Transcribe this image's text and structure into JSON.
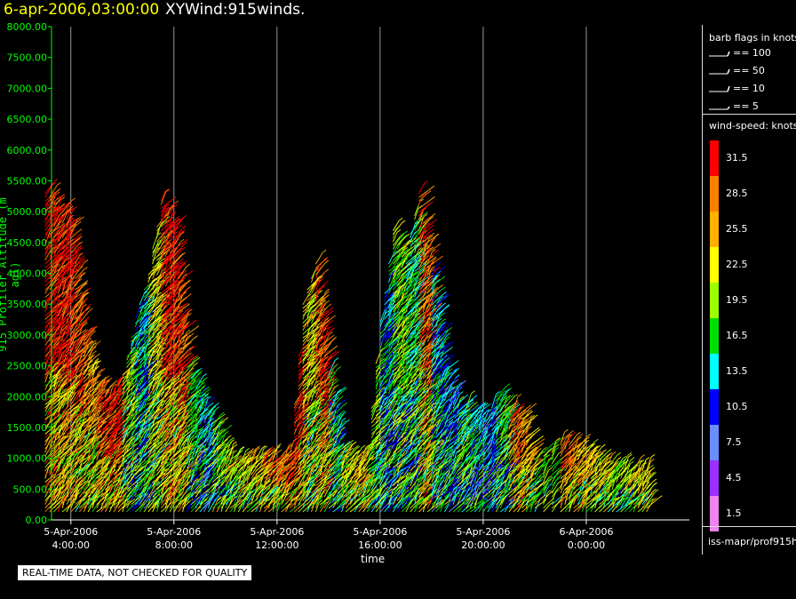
{
  "header": {
    "date_label": "6-apr-2006,03:00:00",
    "title": "XYWind:915winds."
  },
  "footer": {
    "qc_note": "REAL-TIME DATA, NOT CHECKED FOR QUALITY",
    "source": "iss-mapr/prof915h"
  },
  "legend": {
    "barb_title": "barb flags in knots",
    "barbs": [
      {
        "label": "== 100",
        "value": 100
      },
      {
        "label": "== 50",
        "value": 50
      },
      {
        "label": "== 10",
        "value": 10
      },
      {
        "label": "== 5",
        "value": 5
      }
    ],
    "speed_title": "wind-speed: knots",
    "colors": [
      {
        "label": "31.5",
        "color": "#ff0000"
      },
      {
        "label": "28.5",
        "color": "#ff7f00"
      },
      {
        "label": "25.5",
        "color": "#ffb000"
      },
      {
        "label": "22.5",
        "color": "#ffff00"
      },
      {
        "label": "19.5",
        "color": "#9eff00"
      },
      {
        "label": "16.5",
        "color": "#00e000"
      },
      {
        "label": "13.5",
        "color": "#00ffff"
      },
      {
        "label": "10.5",
        "color": "#0000ff"
      },
      {
        "label": "7.5",
        "color": "#6a8dff"
      },
      {
        "label": "4.5",
        "color": "#9b30ff"
      },
      {
        "label": "1.5",
        "color": "#ee82ee"
      }
    ]
  },
  "chart_data": {
    "type": "scatter",
    "title": "XYWind:915winds.",
    "xlabel": "time",
    "ylabel": "915 Profiler Altitude (m agl)",
    "ylim": [
      0,
      8000
    ],
    "yticks": [
      "0.00",
      "500.00",
      "1000.00",
      "1500.00",
      "2000.00",
      "2500.00",
      "3000.00",
      "3500.00",
      "4000.00",
      "4500.00",
      "5000.00",
      "5500.00",
      "6000.00",
      "6500.00",
      "7000.00",
      "7500.00",
      "8000.00"
    ],
    "xlim": [
      "2006-04-05 03:00",
      "2006-04-06 03:00"
    ],
    "xticks": [
      {
        "date": "5-Apr-2006",
        "time": "4:00:00"
      },
      {
        "date": "5-Apr-2006",
        "time": "8:00:00"
      },
      {
        "date": "5-Apr-2006",
        "time": "12:00:00"
      },
      {
        "date": "5-Apr-2006",
        "time": "16:00:00"
      },
      {
        "date": "5-Apr-2006",
        "time": "20:00:00"
      },
      {
        "date": "6-Apr-2006",
        "time": "0:00:00"
      }
    ],
    "grid": "vertical",
    "columns": [
      {
        "t": 3.0,
        "top": 5300,
        "speed": 31.5
      },
      {
        "t": 3.5,
        "top": 5100,
        "speed": 31.5
      },
      {
        "t": 4.0,
        "top": 4800,
        "speed": 29
      },
      {
        "t": 4.5,
        "top": 3000,
        "speed": 26
      },
      {
        "t": 5.0,
        "top": 2200,
        "speed": 30
      },
      {
        "t": 5.5,
        "top": 2000,
        "speed": 31
      },
      {
        "t": 6.0,
        "top": 2400,
        "speed": 18
      },
      {
        "t": 6.5,
        "top": 3300,
        "speed": 14
      },
      {
        "t": 7.0,
        "top": 4000,
        "speed": 22
      },
      {
        "t": 7.5,
        "top": 5200,
        "speed": 31.5
      },
      {
        "t": 8.0,
        "top": 4700,
        "speed": 30
      },
      {
        "t": 8.5,
        "top": 2500,
        "speed": 16
      },
      {
        "t": 9.0,
        "top": 2000,
        "speed": 12
      },
      {
        "t": 9.5,
        "top": 1600,
        "speed": 19
      },
      {
        "t": 10.0,
        "top": 1050,
        "speed": 21
      },
      {
        "t": 10.5,
        "top": 1000,
        "speed": 23
      },
      {
        "t": 11.0,
        "top": 1000,
        "speed": 24
      },
      {
        "t": 11.5,
        "top": 1050,
        "speed": 27
      },
      {
        "t": 12.0,
        "top": 1000,
        "speed": 28
      },
      {
        "t": 12.5,
        "top": 1100,
        "speed": 31
      },
      {
        "t": 13.0,
        "top": 3500,
        "speed": 22
      },
      {
        "t": 13.5,
        "top": 4200,
        "speed": 30
      },
      {
        "t": 14.0,
        "top": 2400,
        "speed": 15
      },
      {
        "t": 14.5,
        "top": 1200,
        "speed": 23
      },
      {
        "t": 15.0,
        "top": 1000,
        "speed": 24
      },
      {
        "t": 15.5,
        "top": 1200,
        "speed": 20
      },
      {
        "t": 16.0,
        "top": 3200,
        "speed": 14
      },
      {
        "t": 16.5,
        "top": 4700,
        "speed": 19
      },
      {
        "t": 17.0,
        "top": 4300,
        "speed": 16
      },
      {
        "t": 17.5,
        "top": 5300,
        "speed": 28
      },
      {
        "t": 18.0,
        "top": 4000,
        "speed": 13
      },
      {
        "t": 18.5,
        "top": 2500,
        "speed": 12
      },
      {
        "t": 19.0,
        "top": 1900,
        "speed": 16
      },
      {
        "t": 19.5,
        "top": 1800,
        "speed": 13
      },
      {
        "t": 20.0,
        "top": 1600,
        "speed": 11
      },
      {
        "t": 20.5,
        "top": 2000,
        "speed": 17
      },
      {
        "t": 21.0,
        "top": 1800,
        "speed": 28
      },
      {
        "t": 21.5,
        "top": 1700,
        "speed": 25
      },
      {
        "t": 22.0,
        "top": 1000,
        "speed": 19
      },
      {
        "t": 23.0,
        "top": 1300,
        "speed": 27
      },
      {
        "t": 23.5,
        "top": 1200,
        "speed": 25
      },
      {
        "t": 24.0,
        "top": 1100,
        "speed": 24
      },
      {
        "t": 24.5,
        "top": 1000,
        "speed": 22
      },
      {
        "t": 25.0,
        "top": 900,
        "speed": 20
      },
      {
        "t": 25.5,
        "top": 850,
        "speed": 22
      },
      {
        "t": 26.0,
        "top": 800,
        "speed": 23
      }
    ]
  }
}
